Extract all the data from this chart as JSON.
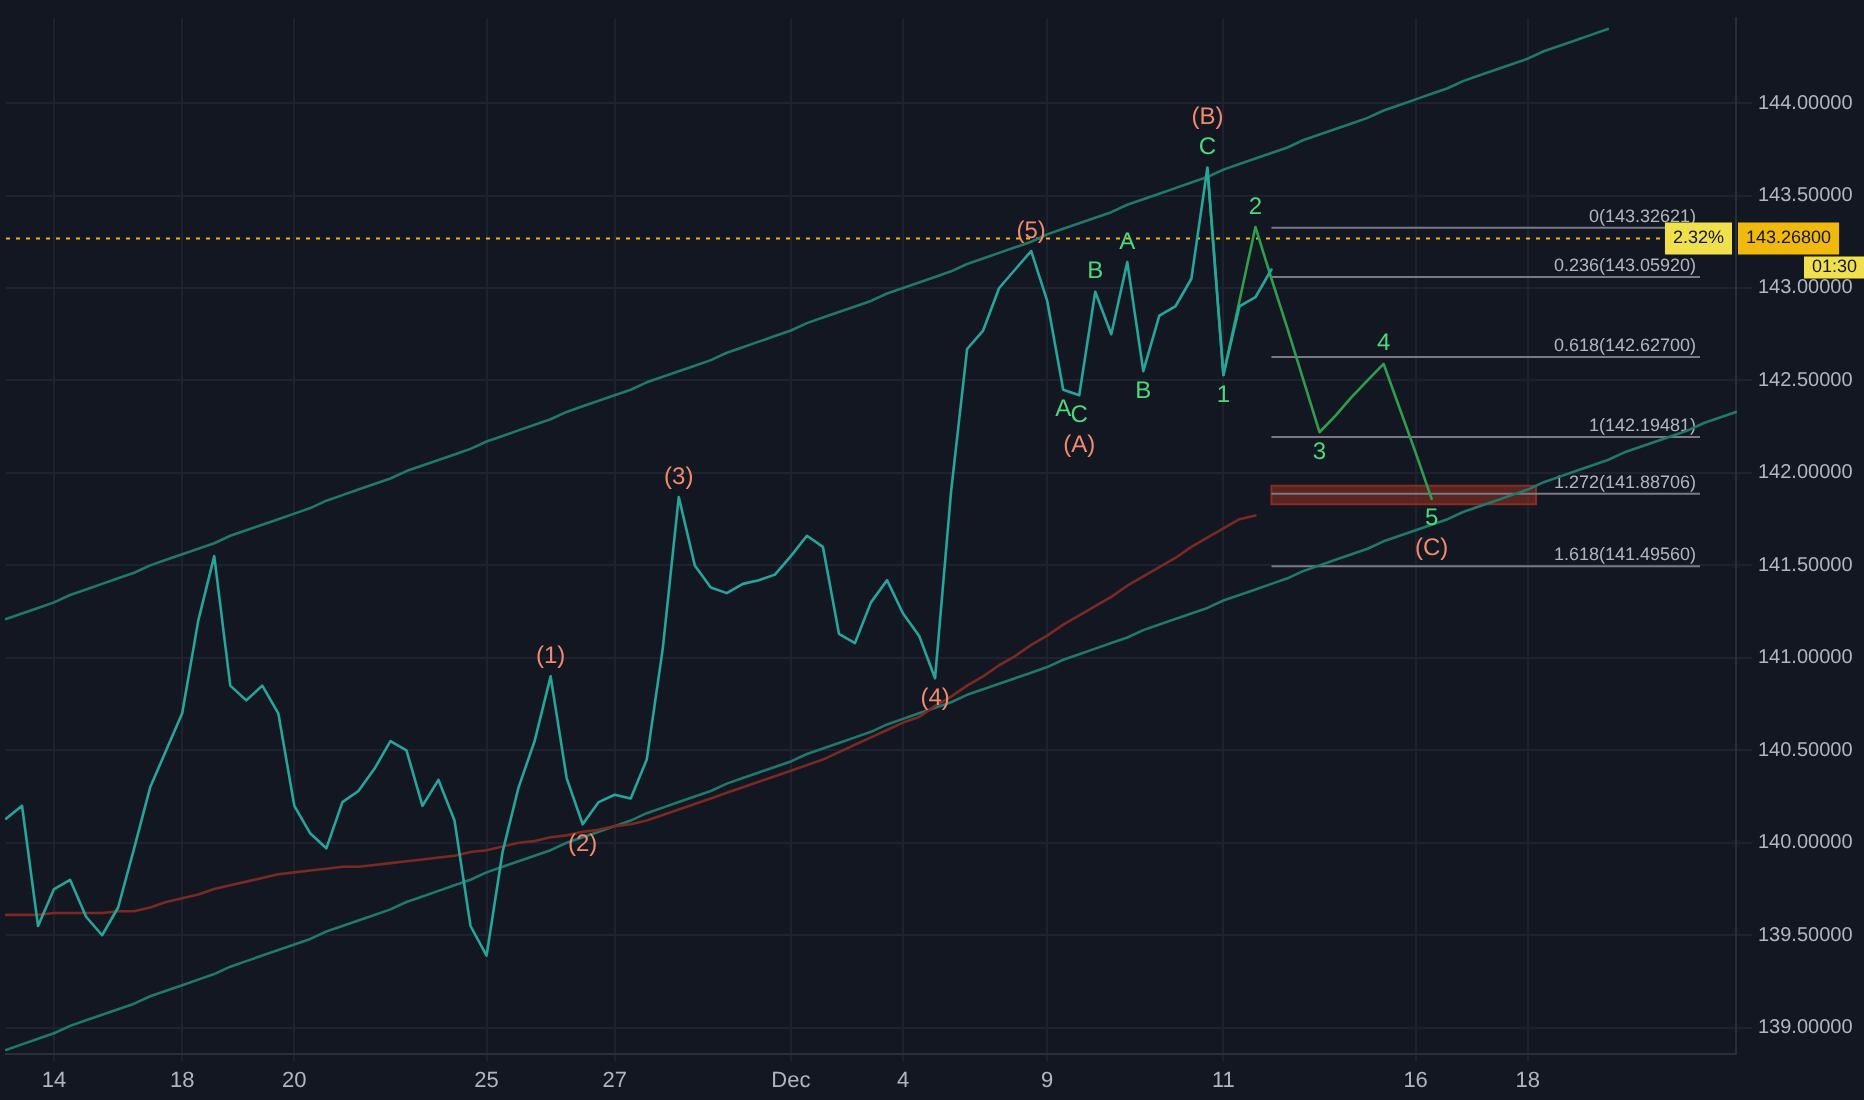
{
  "chart_data": {
    "type": "line",
    "categories": [
      null,
      null,
      null,
      "14",
      null,
      null,
      null,
      null,
      null,
      null,
      null,
      "18",
      null,
      null,
      null,
      null,
      null,
      null,
      "20",
      null,
      null,
      null,
      null,
      null,
      null,
      null,
      null,
      null,
      null,
      null,
      "25",
      null,
      null,
      null,
      null,
      null,
      null,
      null,
      "27",
      null,
      null,
      null,
      null,
      null,
      null,
      null,
      null,
      null,
      null,
      "Dec",
      null,
      null,
      null,
      null,
      null,
      null,
      "4",
      null,
      null,
      null,
      null,
      null,
      null,
      null,
      null,
      "9",
      null,
      null,
      null,
      null,
      null,
      null,
      null,
      null,
      null,
      null,
      "11",
      null,
      null,
      null,
      null,
      null,
      null,
      null,
      null,
      null,
      null,
      null,
      "16",
      null,
      null,
      null,
      null,
      null,
      null,
      "18",
      null,
      null,
      null,
      null,
      null,
      null,
      null,
      null,
      null,
      null,
      null,
      null,
      null
    ],
    "ylim": [
      138.86,
      144.46
    ],
    "yticks": [
      {
        "value": 139,
        "label": "139.00000"
      },
      {
        "value": 139.5,
        "label": "139.50000"
      },
      {
        "value": 140,
        "label": "140.00000"
      },
      {
        "value": 140.5,
        "label": "140.50000"
      },
      {
        "value": 141,
        "label": "141.00000"
      },
      {
        "value": 141.5,
        "label": "141.50000"
      },
      {
        "value": 142,
        "label": "142.00000"
      },
      {
        "value": 142.5,
        "label": "142.50000"
      },
      {
        "value": 143,
        "label": "143.00000"
      },
      {
        "value": 143.5,
        "label": "143.50000"
      },
      {
        "value": 144,
        "label": "144.00000"
      }
    ],
    "grid": true,
    "series": [
      {
        "color": "#26a69a",
        "values": [
          140.13,
          140.2,
          139.55,
          139.75,
          139.8,
          139.6,
          139.5,
          139.65,
          139.97,
          140.3,
          140.5,
          140.7,
          141.2,
          141.55,
          140.85,
          140.77,
          140.85,
          140.7,
          140.2,
          140.05,
          139.97,
          140.22,
          140.28,
          140.4,
          140.55,
          140.5,
          140.2,
          140.34,
          140.12,
          139.55,
          139.39,
          139.95,
          140.3,
          140.55,
          140.9,
          140.35,
          140.1,
          140.22,
          140.26,
          140.24,
          140.45,
          141.05,
          141.87,
          141.5,
          141.38,
          141.35,
          141.4,
          141.42,
          141.45,
          141.55,
          141.66,
          141.6,
          141.13,
          141.08,
          141.3,
          141.42,
          141.24,
          141.12,
          140.89,
          141.9,
          142.67,
          142.77,
          143.0,
          143.1,
          143.2,
          142.93,
          142.45,
          142.42,
          142.98,
          142.75,
          143.14,
          142.55,
          142.85,
          142.9,
          143.05,
          143.65,
          142.53,
          142.9,
          142.95,
          143.1,
          null,
          null,
          null,
          null,
          null,
          null,
          null,
          null,
          null,
          null,
          null,
          null,
          null,
          null,
          null,
          null,
          null,
          null,
          null,
          null,
          null,
          null,
          null,
          null,
          null,
          null,
          null,
          null,
          null
        ]
      },
      {
        "color": "#7b2a22",
        "values": [
          139.61,
          139.61,
          139.61,
          139.62,
          139.62,
          139.62,
          139.62,
          139.63,
          139.63,
          139.65,
          139.68,
          139.7,
          139.72,
          139.75,
          139.77,
          139.79,
          139.81,
          139.83,
          139.84,
          139.85,
          139.86,
          139.87,
          139.87,
          139.88,
          139.89,
          139.9,
          139.91,
          139.92,
          139.93,
          139.95,
          139.96,
          139.98,
          140.0,
          140.01,
          140.03,
          140.04,
          140.06,
          140.07,
          140.09,
          140.1,
          140.12,
          140.15,
          140.18,
          140.21,
          140.24,
          140.27,
          140.3,
          140.33,
          140.36,
          140.39,
          140.42,
          140.45,
          140.49,
          140.53,
          140.57,
          140.61,
          140.65,
          140.68,
          140.74,
          140.79,
          140.85,
          140.9,
          140.96,
          141.01,
          141.07,
          141.12,
          141.18,
          141.23,
          141.28,
          141.33,
          141.39,
          141.44,
          141.49,
          141.54,
          141.6,
          141.65,
          141.7,
          141.75,
          141.77,
          null,
          null,
          null,
          null,
          null,
          null,
          null,
          null,
          null,
          null,
          null,
          null,
          null,
          null,
          null,
          null,
          null,
          null,
          null,
          null,
          null,
          null,
          null,
          null,
          null,
          null,
          null,
          null,
          null,
          null
        ]
      },
      {
        "color": "#1f7a6b",
        "values": [
          141.21,
          141.24,
          141.27,
          141.3,
          141.34,
          141.37,
          141.4,
          141.43,
          141.46,
          141.5,
          141.53,
          141.56,
          141.59,
          141.62,
          141.66,
          141.69,
          141.72,
          141.75,
          141.78,
          141.81,
          141.85,
          141.88,
          141.91,
          141.94,
          141.97,
          142.01,
          142.04,
          142.07,
          142.1,
          142.13,
          142.17,
          142.2,
          142.23,
          142.26,
          142.29,
          142.33,
          142.36,
          142.39,
          142.42,
          142.45,
          142.49,
          142.52,
          142.55,
          142.58,
          142.61,
          142.65,
          142.68,
          142.71,
          142.74,
          142.77,
          142.81,
          142.84,
          142.87,
          142.9,
          142.93,
          142.97,
          143.0,
          143.03,
          143.06,
          143.09,
          143.13,
          143.16,
          143.19,
          143.22,
          143.25,
          143.29,
          143.32,
          143.35,
          143.38,
          143.41,
          143.45,
          143.48,
          143.51,
          143.54,
          143.57,
          143.6,
          143.64,
          143.67,
          143.7,
          143.73,
          143.76,
          143.8,
          143.83,
          143.86,
          143.89,
          143.92,
          143.96,
          143.99,
          144.02,
          144.05,
          144.08,
          144.12,
          144.15,
          144.18,
          144.21,
          144.24,
          144.28,
          144.31,
          144.34,
          144.37,
          144.4,
          null,
          null,
          null,
          null,
          null,
          null,
          null,
          null
        ]
      },
      {
        "color": "#1f7a6b",
        "values": [
          138.88,
          138.91,
          138.94,
          138.97,
          139.01,
          139.04,
          139.07,
          139.1,
          139.13,
          139.17,
          139.2,
          139.23,
          139.26,
          139.29,
          139.33,
          139.36,
          139.39,
          139.42,
          139.45,
          139.48,
          139.52,
          139.55,
          139.58,
          139.61,
          139.64,
          139.68,
          139.71,
          139.74,
          139.77,
          139.8,
          139.84,
          139.87,
          139.9,
          139.93,
          139.96,
          140.0,
          140.03,
          140.06,
          140.09,
          140.12,
          140.16,
          140.19,
          140.22,
          140.25,
          140.28,
          140.32,
          140.35,
          140.38,
          140.41,
          140.44,
          140.48,
          140.51,
          140.54,
          140.57,
          140.6,
          140.64,
          140.67,
          140.7,
          140.73,
          140.76,
          140.8,
          140.83,
          140.86,
          140.89,
          140.92,
          140.95,
          140.99,
          141.02,
          141.05,
          141.08,
          141.11,
          141.15,
          141.18,
          141.21,
          141.24,
          141.27,
          141.31,
          141.34,
          141.37,
          141.4,
          141.43,
          141.47,
          141.5,
          141.53,
          141.56,
          141.59,
          141.63,
          141.66,
          141.69,
          141.72,
          141.75,
          141.79,
          141.82,
          141.85,
          141.88,
          141.91,
          141.95,
          141.98,
          142.01,
          142.04,
          142.07,
          142.11,
          142.14,
          142.17,
          142.2,
          142.23,
          142.27,
          142.3,
          142.33
        ]
      },
      {
        "color": "#2e9e4e",
        "values": [
          null,
          null,
          null,
          null,
          null,
          null,
          null,
          null,
          null,
          null,
          null,
          null,
          null,
          null,
          null,
          null,
          null,
          null,
          null,
          null,
          null,
          null,
          null,
          null,
          null,
          null,
          null,
          null,
          null,
          null,
          null,
          null,
          null,
          null,
          null,
          null,
          null,
          null,
          null,
          null,
          null,
          null,
          null,
          null,
          null,
          null,
          null,
          null,
          null,
          null,
          null,
          null,
          null,
          null,
          null,
          null,
          null,
          null,
          null,
          null,
          null,
          null,
          null,
          null,
          null,
          null,
          null,
          null,
          null,
          null,
          null,
          null,
          null,
          null,
          null,
          143.65,
          142.53,
          142.93,
          143.33,
          143.05,
          142.78,
          142.5,
          142.22,
          142.31,
          142.41,
          142.5,
          142.59,
          142.35,
          142.11,
          141.86,
          null,
          null,
          null,
          null,
          null,
          null,
          null,
          null,
          null,
          null,
          null,
          null,
          null,
          null,
          null,
          null,
          null,
          null,
          null
        ]
      }
    ],
    "ref_lines": [
      {
        "axis": "y",
        "value": 143.32621,
        "label": "0(143.32621)",
        "color": "#787b86"
      },
      {
        "axis": "y",
        "value": 143.0592,
        "label": "0.236(143.05920)",
        "color": "#787b86"
      },
      {
        "axis": "y",
        "value": 142.627,
        "label": "0.618(142.62700)",
        "color": "#787b86"
      },
      {
        "axis": "y",
        "value": 142.19481,
        "label": "1(142.19481)",
        "color": "#787b86"
      },
      {
        "axis": "y",
        "value": 141.88706,
        "label": "1.272(141.88706)",
        "color": "#787b86"
      },
      {
        "axis": "y",
        "value": 141.4956,
        "label": "1.618(141.49560)",
        "color": "#787b86"
      },
      {
        "axis": "y",
        "value": 143.268,
        "label": "143.26800",
        "color": "#f0b90b",
        "line_style": "dotted"
      }
    ],
    "bands": [
      {
        "axis": "y",
        "from": 141.83,
        "to": 141.93,
        "color": "#8b2d22"
      }
    ],
    "annotations": [
      {
        "text": "(1)",
        "y": 140.9
      },
      {
        "text": "(2)",
        "y": 140.1
      },
      {
        "text": "(3)",
        "y": 141.87
      },
      {
        "text": "(4)",
        "y": 140.89
      },
      {
        "text": "(5)",
        "y": 143.2
      },
      {
        "text": "A",
        "y": 142.45
      },
      {
        "text": "C",
        "y": 142.42
      },
      {
        "text": "(A)",
        "y": 142.42
      },
      {
        "text": "B",
        "y": 142.98
      },
      {
        "text": "A",
        "y": 143.14
      },
      {
        "text": "B",
        "y": 142.55
      },
      {
        "text": "C",
        "y": 143.65
      },
      {
        "text": "(B)",
        "y": 143.65
      },
      {
        "text": "1",
        "y": 142.53
      },
      {
        "text": "2",
        "y": 143.33
      },
      {
        "text": "3",
        "y": 142.22
      },
      {
        "text": "4",
        "y": 142.59
      },
      {
        "text": "5",
        "y": 141.86
      },
      {
        "text": "(C)",
        "y": 141.86
      },
      "2.32%",
      "01:30"
    ]
  }
}
